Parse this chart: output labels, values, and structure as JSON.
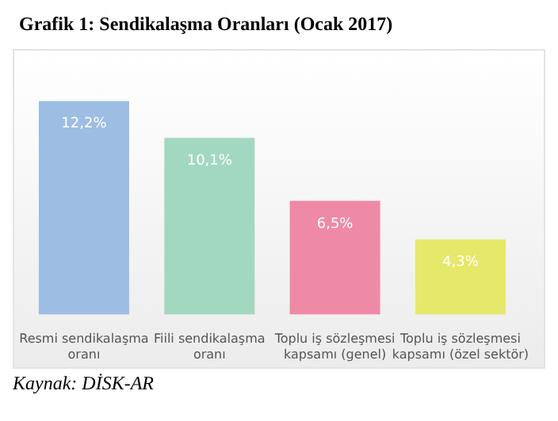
{
  "chart_data": {
    "type": "bar",
    "title": "Grafik 1: Sendikalaşma Oranları (Ocak 2017)",
    "categories": [
      "Resmi sendikalaşma oranı",
      "Fiili sendikalaşma oranı",
      "Toplu iş sözleşmesi kapsamı (genel)",
      "Toplu iş sözleşmesi kapsamı (özel sektör)"
    ],
    "values": [
      12.2,
      10.1,
      6.5,
      4.3
    ],
    "colors": [
      "#9dbde3",
      "#a3d8c0",
      "#ef8aa6",
      "#e6e86a"
    ],
    "value_labels": [
      "12,2%",
      "10,1%",
      "6,5%",
      "4,3%"
    ],
    "grid": false,
    "legend": false,
    "annotations": [
      "Kaynak: DİSK-AR"
    ]
  }
}
